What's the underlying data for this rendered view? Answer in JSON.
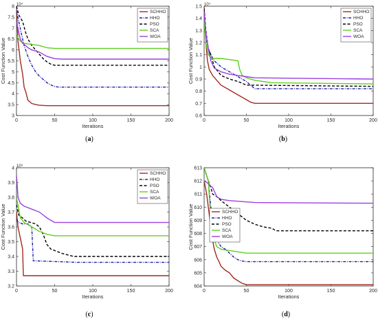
{
  "colors": {
    "SCHHO": "#a0291f",
    "HHO": "#1a1aa6",
    "PSO": "#000000",
    "SCA": "#5fcf1f",
    "WOA": "#9a3fe0"
  },
  "chart_data": [
    {
      "id": "a",
      "type": "line",
      "caption": "(a)",
      "xlabel": "Iterations",
      "ylabel": "Cost Function Value",
      "ylim": [
        3,
        8
      ],
      "y_exponent": "10⁴",
      "xticks": [
        "0",
        "50",
        "100",
        "150",
        "200"
      ],
      "yticks": [
        "3",
        "3.5",
        "4",
        "4.5",
        "5",
        "5.5",
        "6",
        "6.5",
        "7",
        "7.5",
        "8"
      ],
      "legend_position": "top-right",
      "grid": false,
      "series": [
        {
          "name": "SCHHO",
          "style": "solid",
          "x": [
            0,
            2,
            5,
            8,
            10,
            12,
            15,
            20,
            25,
            30,
            40,
            50,
            200
          ],
          "y": [
            7.9,
            6.4,
            5.5,
            4.9,
            4.3,
            4.1,
            3.7,
            3.55,
            3.5,
            3.47,
            3.45,
            3.45,
            3.45
          ]
        },
        {
          "name": "HHO",
          "style": "dashdot",
          "x": [
            0,
            3,
            6,
            10,
            15,
            20,
            25,
            30,
            35,
            40,
            45,
            50,
            55,
            60,
            200
          ],
          "y": [
            7.8,
            7.3,
            6.8,
            6.2,
            5.7,
            5.3,
            5.0,
            4.8,
            4.65,
            4.5,
            4.4,
            4.33,
            4.3,
            4.3,
            4.3
          ]
        },
        {
          "name": "PSO",
          "style": "dashed",
          "x": [
            0,
            3,
            8,
            12,
            15,
            20,
            25,
            30,
            35,
            40,
            45,
            50,
            60,
            200
          ],
          "y": [
            8.0,
            7.6,
            7.3,
            6.8,
            6.5,
            6.2,
            6.0,
            5.8,
            5.6,
            5.45,
            5.35,
            5.3,
            5.3,
            5.3
          ]
        },
        {
          "name": "SCA",
          "style": "solid",
          "x": [
            0,
            3,
            5,
            10,
            20,
            30,
            40,
            50,
            200
          ],
          "y": [
            6.7,
            6.5,
            6.4,
            6.3,
            6.25,
            6.2,
            6.1,
            6.07,
            6.07
          ]
        },
        {
          "name": "WOA",
          "style": "solid",
          "x": [
            0,
            3,
            5,
            8,
            12,
            15,
            20,
            30,
            40,
            50,
            60,
            200
          ],
          "y": [
            7.3,
            6.8,
            6.5,
            6.3,
            6.2,
            6.1,
            6.0,
            5.9,
            5.7,
            5.6,
            5.58,
            5.58
          ]
        }
      ]
    },
    {
      "id": "b",
      "type": "line",
      "caption": "(b)",
      "xlabel": "Iterations",
      "ylabel": "Cost Function Value",
      "ylim": [
        0.6,
        1.5
      ],
      "y_exponent": "10⁴",
      "xticks": [
        "0",
        "50",
        "100",
        "150",
        "200"
      ],
      "yticks": [
        "0.6",
        "0.7",
        "0.8",
        "0.9",
        "1",
        "1.1",
        "1.2",
        "1.3",
        "1.4",
        "1.5"
      ],
      "legend_position": "top-right",
      "grid": false,
      "series": [
        {
          "name": "SCHHO",
          "style": "solid",
          "x": [
            0,
            2,
            4,
            6,
            10,
            15,
            20,
            30,
            40,
            50,
            55,
            60,
            200
          ],
          "y": [
            1.5,
            1.2,
            1.05,
            0.98,
            0.93,
            0.89,
            0.85,
            0.81,
            0.77,
            0.73,
            0.71,
            0.7,
            0.7
          ]
        },
        {
          "name": "HHO",
          "style": "dashdot",
          "x": [
            0,
            2,
            5,
            8,
            12,
            20,
            30,
            40,
            50,
            55,
            60,
            200
          ],
          "y": [
            1.45,
            1.25,
            1.15,
            1.1,
            1.05,
            1.0,
            0.96,
            0.92,
            0.88,
            0.85,
            0.82,
            0.82
          ]
        },
        {
          "name": "PSO",
          "style": "dashed",
          "x": [
            0,
            2,
            5,
            8,
            12,
            20,
            30,
            40,
            50,
            200
          ],
          "y": [
            1.48,
            1.3,
            1.15,
            1.1,
            1.0,
            0.93,
            0.9,
            0.88,
            0.85,
            0.84
          ]
        },
        {
          "name": "SCA",
          "style": "solid",
          "x": [
            0,
            2,
            5,
            10,
            20,
            30,
            40,
            42,
            45,
            50,
            60,
            80,
            200
          ],
          "y": [
            1.4,
            1.2,
            1.1,
            1.07,
            1.07,
            1.06,
            1.05,
            0.98,
            0.93,
            0.91,
            0.89,
            0.87,
            0.86
          ]
        },
        {
          "name": "WOA",
          "style": "solid",
          "x": [
            0,
            2,
            5,
            8,
            12,
            20,
            30,
            40,
            50,
            60,
            200
          ],
          "y": [
            1.45,
            1.28,
            1.15,
            1.05,
            0.99,
            0.96,
            0.94,
            0.93,
            0.92,
            0.91,
            0.9
          ]
        }
      ]
    },
    {
      "id": "c",
      "type": "line",
      "caption": "(c)",
      "xlabel": "Iterations",
      "ylabel": "Cost Function Value",
      "ylim": [
        3.2,
        4.0
      ],
      "y_exponent": "10⁹",
      "xticks": [
        "0",
        "50",
        "100",
        "150",
        "200"
      ],
      "yticks": [
        "3.2",
        "3.3",
        "3.4",
        "3.5",
        "3.6",
        "3.7",
        "3.8",
        "3.9",
        "4"
      ],
      "legend_position": "top-right",
      "grid": false,
      "series": [
        {
          "name": "SCHHO",
          "style": "solid",
          "x": [
            0,
            2,
            4,
            6,
            8,
            9,
            200
          ],
          "y": [
            3.7,
            3.6,
            3.55,
            3.5,
            3.45,
            3.27,
            3.27
          ]
        },
        {
          "name": "HHO",
          "style": "dashdot",
          "x": [
            0,
            3,
            8,
            15,
            20,
            22,
            25,
            80,
            200
          ],
          "y": [
            3.65,
            3.63,
            3.62,
            3.62,
            3.6,
            3.37,
            3.37,
            3.36,
            3.36
          ]
        },
        {
          "name": "PSO",
          "style": "dashed",
          "x": [
            0,
            3,
            8,
            12,
            25,
            30,
            35,
            40,
            45,
            50,
            60,
            75,
            200
          ],
          "y": [
            3.75,
            3.68,
            3.66,
            3.64,
            3.62,
            3.6,
            3.55,
            3.48,
            3.45,
            3.44,
            3.42,
            3.4,
            3.4
          ]
        },
        {
          "name": "SCA",
          "style": "solid",
          "x": [
            0,
            3,
            5,
            10,
            20,
            30,
            40,
            50,
            200
          ],
          "y": [
            3.8,
            3.72,
            3.66,
            3.63,
            3.6,
            3.57,
            3.55,
            3.54,
            3.54
          ]
        },
        {
          "name": "WOA",
          "style": "solid",
          "x": [
            0,
            2,
            5,
            10,
            20,
            30,
            40,
            50,
            200
          ],
          "y": [
            3.95,
            3.8,
            3.76,
            3.74,
            3.72,
            3.7,
            3.66,
            3.63,
            3.63
          ]
        }
      ]
    },
    {
      "id": "d",
      "type": "line",
      "caption": "(d)",
      "xlabel": "Iterations",
      "ylabel": "Cost Function Value",
      "ylim": [
        604,
        613
      ],
      "y_exponent": "",
      "xticks": [
        "0",
        "50",
        "100",
        "150",
        "200"
      ],
      "yticks": [
        "604",
        "605",
        "606",
        "607",
        "608",
        "609",
        "610",
        "611",
        "612",
        "613"
      ],
      "legend_position": "center-left",
      "grid": false,
      "series": [
        {
          "name": "SCHHO",
          "style": "solid",
          "x": [
            0,
            3,
            5,
            8,
            10,
            12,
            15,
            18,
            20,
            25,
            30,
            35,
            40,
            45,
            50,
            200
          ],
          "y": [
            612,
            611,
            610,
            608.5,
            607.5,
            606.8,
            606.2,
            605.8,
            605.5,
            605.2,
            605,
            604.6,
            604.4,
            604.2,
            604.1,
            604.1
          ]
        },
        {
          "name": "HHO",
          "style": "dashdot",
          "x": [
            0,
            5,
            8,
            10,
            12,
            15,
            20,
            25,
            30,
            35,
            40,
            45,
            50,
            200
          ],
          "y": [
            613,
            612,
            610,
            609,
            608,
            607.5,
            607,
            606.8,
            606.5,
            606.2,
            606,
            605.9,
            605.85,
            605.85
          ]
        },
        {
          "name": "PSO",
          "style": "dashed",
          "x": [
            0,
            5,
            8,
            10,
            15,
            20,
            30,
            40,
            50,
            60,
            70,
            80,
            85,
            200
          ],
          "y": [
            613,
            612,
            611.5,
            611,
            610.8,
            610.5,
            610,
            609.5,
            609,
            608.7,
            608.5,
            608.4,
            608.2,
            608.2
          ]
        },
        {
          "name": "SCA",
          "style": "solid",
          "x": [
            0,
            5,
            8,
            10,
            12,
            15,
            20,
            30,
            40,
            50,
            200
          ],
          "y": [
            613,
            612,
            609,
            608,
            607.5,
            607,
            606.8,
            606.7,
            606.6,
            606.5,
            606.5
          ]
        },
        {
          "name": "WOA",
          "style": "solid",
          "x": [
            0,
            5,
            8,
            10,
            15,
            20,
            30,
            40,
            50,
            60,
            200
          ],
          "y": [
            612,
            611.8,
            611.6,
            611.5,
            610.8,
            610.6,
            610.5,
            610.45,
            610.4,
            610.35,
            610.3
          ]
        }
      ]
    }
  ]
}
